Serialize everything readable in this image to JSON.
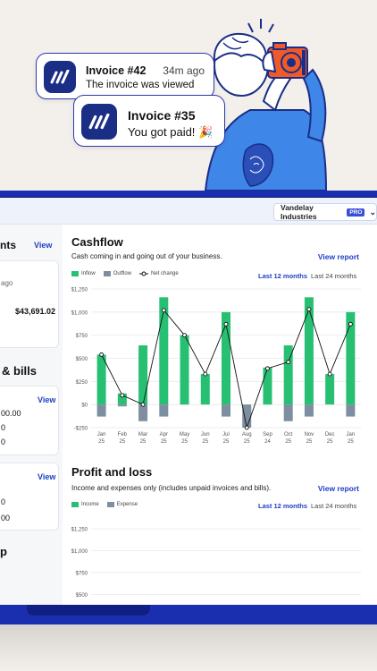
{
  "notifications": [
    {
      "title": "Invoice #42",
      "time": "34m ago",
      "message": "The invoice was viewed"
    },
    {
      "title": "Invoice #35",
      "message": "You got paid! 🎉"
    }
  ],
  "topbar": {
    "company": "Vandelay Industries",
    "badge": "PRO"
  },
  "left": {
    "clients_title": "nts",
    "clients_view": "View",
    "clients_ago": "ago",
    "clients_amount": "$43,691.02",
    "bills_title": "& bills",
    "bills_view": "View",
    "bills_line1": "00.00",
    "bills_line2": "0",
    "bills_line3": "0",
    "card3_view": "View",
    "card3_line1": "0",
    "card3_line2": "00",
    "bottom_title": "p"
  },
  "cashflow": {
    "title": "Cashflow",
    "subtitle": "Cash coming in and going out of your business.",
    "report": "View report",
    "period_active": "Last 12 months",
    "period_other": "Last 24 months",
    "legend": [
      "Inflow",
      "Outflow",
      "Net change"
    ]
  },
  "profit": {
    "title": "Profit and loss",
    "subtitle": "Income and expenses only (includes unpaid invoices and bills).",
    "report": "View report",
    "period_active": "Last 12 months",
    "period_other": "Last 24 months",
    "legend": [
      "Income",
      "Expense"
    ]
  },
  "colors": {
    "inflow": "#27c073",
    "outflow": "#7d8ea0",
    "accent": "#1e3fc4",
    "frame": "#1a2fb0"
  },
  "chart_data": [
    {
      "type": "bar",
      "title": "Cashflow",
      "categories": [
        "Jan 25",
        "Feb 25",
        "Mar 25",
        "Apr 25",
        "May 25",
        "Jun 25",
        "Jul 25",
        "Aug 25",
        "Sep 24",
        "Oct 25",
        "Nov 25",
        "Dec 25",
        "Jan 25"
      ],
      "category_lines": [
        [
          "Jan",
          "25"
        ],
        [
          "Feb",
          "25"
        ],
        [
          "Mar",
          "25"
        ],
        [
          "Apr",
          "25"
        ],
        [
          "May",
          "25"
        ],
        [
          "Jun",
          "25"
        ],
        [
          "Jul",
          "25"
        ],
        [
          "Aug",
          "25"
        ],
        [
          "Sep",
          "24"
        ],
        [
          "Oct",
          "25"
        ],
        [
          "Nov",
          "25"
        ],
        [
          "Dec",
          "25"
        ],
        [
          "Jan",
          "25"
        ]
      ],
      "series": [
        {
          "name": "Inflow",
          "type": "bar",
          "values": [
            540,
            120,
            640,
            1160,
            750,
            330,
            1000,
            0,
            400,
            640,
            1160,
            330,
            1000
          ]
        },
        {
          "name": "Outflow",
          "type": "bar",
          "values": [
            -130,
            -20,
            -180,
            -130,
            0,
            0,
            -130,
            -250,
            0,
            -180,
            -130,
            0,
            -130
          ]
        },
        {
          "name": "Net change",
          "type": "line",
          "values": [
            540,
            100,
            0,
            1020,
            750,
            330,
            870,
            -250,
            390,
            460,
            1030,
            330,
            870
          ]
        }
      ],
      "ylim": [
        -250,
        1250
      ],
      "yticks": [
        -250,
        0,
        250,
        500,
        750,
        1000,
        1250
      ],
      "ytick_labels": [
        "-$250",
        "$0",
        "$250",
        "$500",
        "$750",
        "$1,000",
        "$1,250"
      ],
      "grid": true,
      "legend": "top-left"
    },
    {
      "type": "bar",
      "title": "Profit and loss",
      "categories": [],
      "series": [
        {
          "name": "Income",
          "values": []
        },
        {
          "name": "Expense",
          "values": []
        }
      ],
      "yticks": [
        500,
        750,
        1000,
        1250
      ],
      "ytick_labels": [
        "$500",
        "$750",
        "$1,000",
        "$1,250"
      ],
      "grid": true,
      "legend": "top-left"
    }
  ]
}
